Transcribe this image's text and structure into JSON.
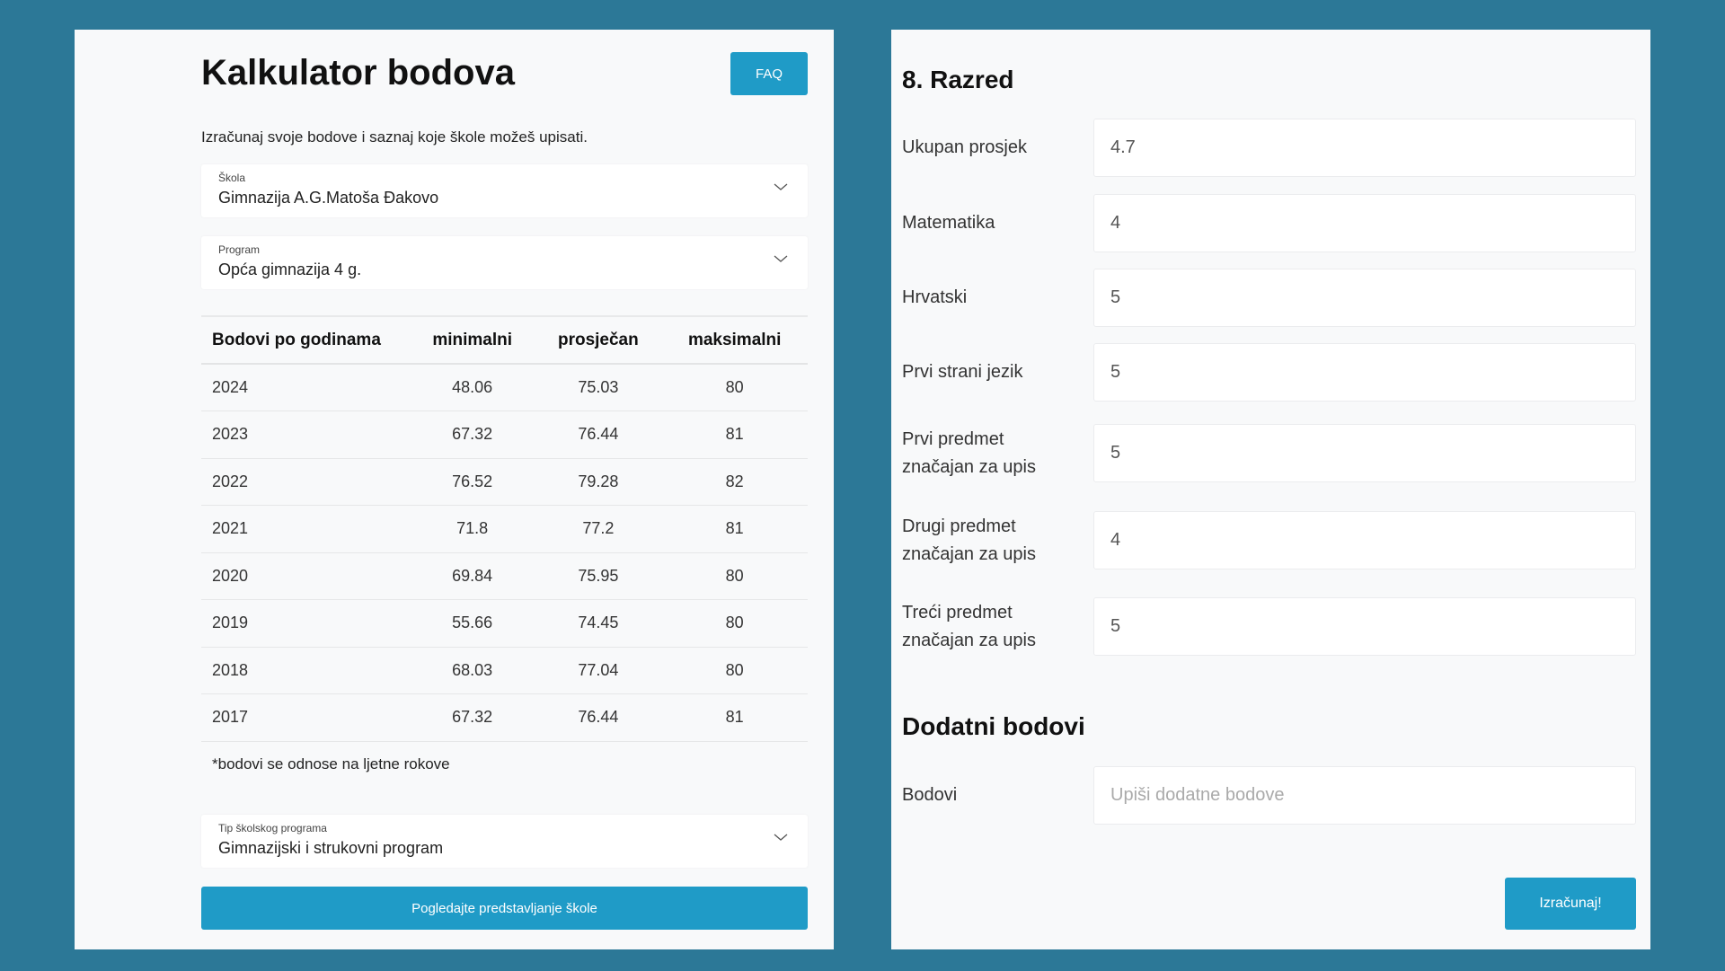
{
  "header": {
    "title": "Kalkulator bodova",
    "faq_label": "FAQ",
    "subtitle": "Izračunaj svoje bodove i saznaj koje škole možeš upisati."
  },
  "selects": {
    "school": {
      "label": "Škola",
      "value": "Gimnazija A.G.Matoša Đakovo"
    },
    "program": {
      "label": "Program",
      "value": "Opća gimnazija 4 g."
    },
    "type": {
      "label": "Tip školskog programa",
      "value": "Gimnazijski i strukovni program"
    }
  },
  "table": {
    "headers": [
      "Bodovi po godinama",
      "minimalni",
      "prosječan",
      "maksimalni"
    ],
    "rows": [
      [
        "2024",
        "48.06",
        "75.03",
        "80"
      ],
      [
        "2023",
        "67.32",
        "76.44",
        "81"
      ],
      [
        "2022",
        "76.52",
        "79.28",
        "82"
      ],
      [
        "2021",
        "71.8",
        "77.2",
        "81"
      ],
      [
        "2020",
        "69.84",
        "75.95",
        "80"
      ],
      [
        "2019",
        "55.66",
        "74.45",
        "80"
      ],
      [
        "2018",
        "68.03",
        "77.04",
        "80"
      ],
      [
        "2017",
        "67.32",
        "76.44",
        "81"
      ]
    ]
  },
  "note": "*bodovi se odnose na ljetne rokove",
  "presentation_button": "Pogledajte predstavljanje škole",
  "grade": {
    "title": "8. Razred",
    "fields": [
      {
        "label": "Ukupan prosjek",
        "value": "4.7"
      },
      {
        "label": "Matematika",
        "value": "4"
      },
      {
        "label": "Hrvatski",
        "value": "5"
      },
      {
        "label": "Prvi strani jezik",
        "value": "5"
      },
      {
        "label": "Prvi predmet značajan za upis",
        "value": "5"
      },
      {
        "label": "Drugi predmet značajan za upis",
        "value": "4"
      },
      {
        "label": "Treći predmet značajan za upis",
        "value": "5"
      }
    ]
  },
  "extra": {
    "title": "Dodatni bodovi",
    "label": "Bodovi",
    "placeholder": "Upiši dodatne bodove",
    "value": ""
  },
  "calculate_button": "Izračunaj!",
  "colors": {
    "background": "#2c7897",
    "accent": "#1f9bc7"
  }
}
